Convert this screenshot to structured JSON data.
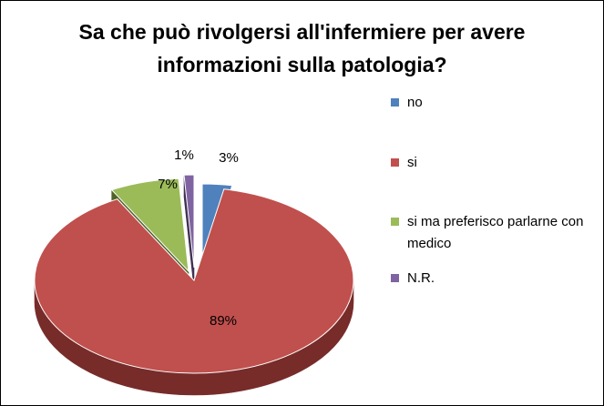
{
  "chart_data": {
    "type": "pie",
    "title": "Sa che può rivolgersi all'infermiere per avere informazioni sulla patologia?",
    "categories": [
      "no",
      "si",
      "si ma preferisco parlarne con medico",
      "N.R."
    ],
    "values": [
      3,
      89,
      7,
      1
    ],
    "data_labels": [
      "3%",
      "89%",
      "7%",
      "1%"
    ],
    "colors": [
      "#4F81BD",
      "#C0504D",
      "#9BBB59",
      "#8064A2"
    ],
    "side_colors": [
      "#2C4D75",
      "#772C2A",
      "#4F6228",
      "#403152"
    ],
    "exploded": true,
    "three_d": true,
    "legend_placement": "right"
  }
}
